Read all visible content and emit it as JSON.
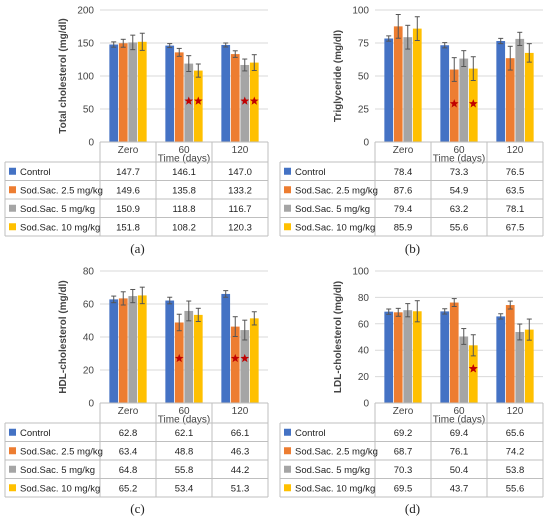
{
  "colors": {
    "Control": "#4472c4",
    "Sod.Sac. 2.5 mg/kg": "#ed7d31",
    "Sod.Sac. 5 mg/kg": "#a5a5a5",
    "Sod.Sac. 10 mg/kg": "#ffc000",
    "star": "#c00000"
  },
  "chart_data": [
    {
      "type": "bar",
      "panel_label": "(a)",
      "ylabel": "Total cholesterol (mg/dl)",
      "xlabel": "Time (days)",
      "categories": [
        "Zero",
        "60",
        "120"
      ],
      "ylim": [
        0,
        200
      ],
      "yticks": [
        0,
        50,
        100,
        150,
        200
      ],
      "series": [
        {
          "name": "Control",
          "values": [
            147.7,
            146.1,
            147.0
          ],
          "errors": [
            4,
            3,
            3
          ]
        },
        {
          "name": "Sod.Sac. 2.5 mg/kg",
          "values": [
            149.6,
            135.8,
            133.2
          ],
          "errors": [
            6,
            6,
            5
          ]
        },
        {
          "name": "Sod.Sac. 5 mg/kg",
          "values": [
            150.9,
            118.8,
            116.7
          ],
          "errors": [
            11,
            12,
            9
          ]
        },
        {
          "name": "Sod.Sac. 10 mg/kg",
          "values": [
            151.8,
            108.2,
            120.3
          ],
          "errors": [
            13,
            10,
            12
          ]
        }
      ],
      "table": [
        [
          "147.7",
          "146.1",
          "147.0"
        ],
        [
          "149.6",
          "135.8",
          "133.2"
        ],
        [
          "150.9",
          "118.8",
          "116.7"
        ],
        [
          "151.8",
          "108.2",
          "120.3"
        ]
      ],
      "stars": [
        {
          "category": 1,
          "series": 2,
          "value": 62
        },
        {
          "category": 1,
          "series": 3,
          "value": 62
        },
        {
          "category": 2,
          "series": 2,
          "value": 62
        },
        {
          "category": 2,
          "series": 3,
          "value": 62
        }
      ],
      "grid": true
    },
    {
      "type": "bar",
      "panel_label": "(b)",
      "ylabel": "Triglyceride (mg/dl)",
      "xlabel": "Time (days)",
      "categories": [
        "Zero",
        "60",
        "120"
      ],
      "ylim": [
        0,
        100
      ],
      "yticks": [
        0,
        25,
        50,
        75,
        100
      ],
      "series": [
        {
          "name": "Control",
          "values": [
            78.4,
            73.3,
            76.5
          ],
          "errors": [
            2,
            2,
            2
          ]
        },
        {
          "name": "Sod.Sac. 2.5 mg/kg",
          "values": [
            87.6,
            54.9,
            63.5
          ],
          "errors": [
            9,
            9,
            9
          ]
        },
        {
          "name": "Sod.Sac. 5 mg/kg",
          "values": [
            79.4,
            63.2,
            78.1
          ],
          "errors": [
            9,
            6,
            5
          ]
        },
        {
          "name": "Sod.Sac. 10 mg/kg",
          "values": [
            85.9,
            55.6,
            67.5
          ],
          "errors": [
            9,
            9,
            7
          ]
        }
      ],
      "table": [
        [
          "78.4",
          "73.3",
          "76.5"
        ],
        [
          "87.6",
          "54.9",
          "63.5"
        ],
        [
          "79.4",
          "63.2",
          "78.1"
        ],
        [
          "85.9",
          "55.6",
          "67.5"
        ]
      ],
      "stars": [
        {
          "category": 1,
          "series": 1,
          "value": 29
        },
        {
          "category": 1,
          "series": 3,
          "value": 29
        }
      ],
      "grid": true
    },
    {
      "type": "bar",
      "panel_label": "(c)",
      "ylabel": "HDL-cholesterol (mg/dl)",
      "xlabel": "Time (days)",
      "categories": [
        "Zero",
        "60",
        "120"
      ],
      "ylim": [
        0,
        80
      ],
      "yticks": [
        0,
        20,
        40,
        60,
        80
      ],
      "series": [
        {
          "name": "Control",
          "values": [
            62.8,
            62.1,
            66.1
          ],
          "errors": [
            2,
            2,
            2
          ]
        },
        {
          "name": "Sod.Sac. 2.5 mg/kg",
          "values": [
            63.4,
            48.8,
            46.3
          ],
          "errors": [
            4,
            5,
            6
          ]
        },
        {
          "name": "Sod.Sac. 5 mg/kg",
          "values": [
            64.8,
            55.8,
            44.2
          ],
          "errors": [
            4,
            6,
            6
          ]
        },
        {
          "name": "Sod.Sac. 10 mg/kg",
          "values": [
            65.2,
            53.4,
            51.3
          ],
          "errors": [
            5,
            4,
            4
          ]
        }
      ],
      "table": [
        [
          "62.8",
          "62.1",
          "66.1"
        ],
        [
          "63.4",
          "48.8",
          "46.3"
        ],
        [
          "64.8",
          "55.8",
          "44.2"
        ],
        [
          "65.2",
          "53.4",
          "51.3"
        ]
      ],
      "stars": [
        {
          "category": 1,
          "series": 1,
          "value": 27
        },
        {
          "category": 2,
          "series": 1,
          "value": 27
        },
        {
          "category": 2,
          "series": 2,
          "value": 27
        }
      ],
      "grid": true
    },
    {
      "type": "bar",
      "panel_label": "(d)",
      "ylabel": "LDL-cholesterol (mg/dl)",
      "xlabel": "Time (days)",
      "categories": [
        "Zero",
        "60",
        "120"
      ],
      "ylim": [
        0,
        100
      ],
      "yticks": [
        0,
        20,
        40,
        60,
        80,
        100
      ],
      "series": [
        {
          "name": "Control",
          "values": [
            69.2,
            69.4,
            65.6
          ],
          "errors": [
            2,
            2,
            2
          ]
        },
        {
          "name": "Sod.Sac. 2.5 mg/kg",
          "values": [
            68.7,
            76.1,
            74.2
          ],
          "errors": [
            3,
            3,
            3
          ]
        },
        {
          "name": "Sod.Sac. 5 mg/kg",
          "values": [
            70.3,
            50.4,
            53.8
          ],
          "errors": [
            5,
            6,
            6
          ]
        },
        {
          "name": "Sod.Sac. 10 mg/kg",
          "values": [
            69.5,
            43.7,
            55.6
          ],
          "errors": [
            8,
            8,
            8
          ]
        }
      ],
      "table": [
        [
          "69.2",
          "69.4",
          "65.6"
        ],
        [
          "68.7",
          "76.1",
          "74.2"
        ],
        [
          "70.3",
          "50.4",
          "53.8"
        ],
        [
          "69.5",
          "43.7",
          "55.6"
        ]
      ],
      "stars": [
        {
          "category": 1,
          "series": 3,
          "value": 26
        },
        {
          "category": 1,
          "series": 3,
          "value": 26
        }
      ],
      "grid": true
    }
  ]
}
